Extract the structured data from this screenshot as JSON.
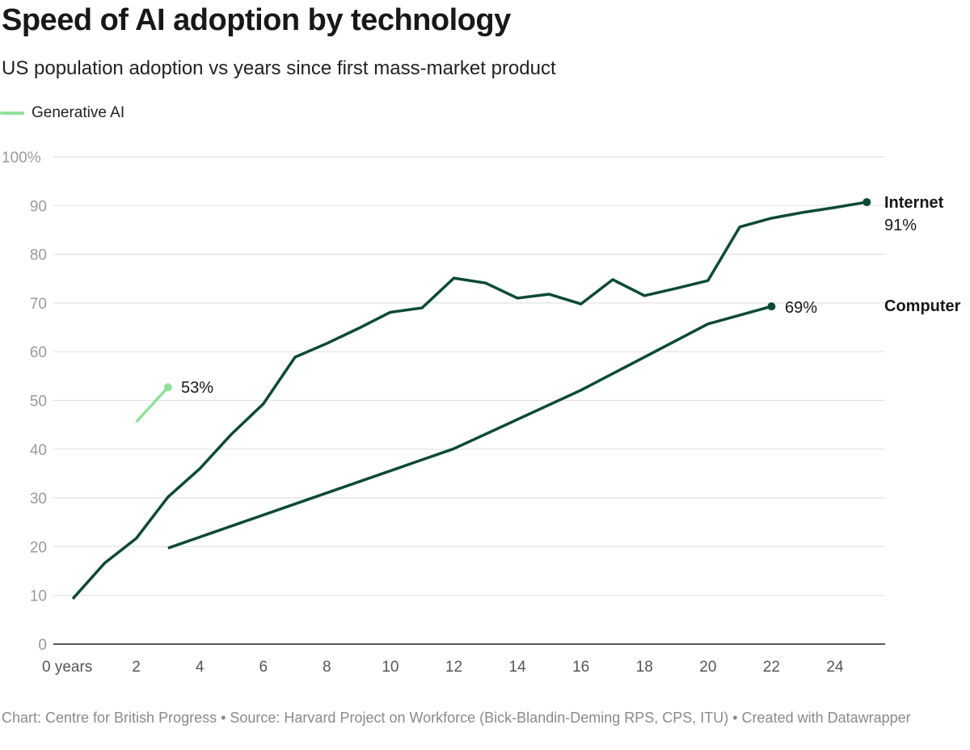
{
  "header": {
    "title": "Speed of AI adoption by technology",
    "subtitle": "US population adoption vs years since first mass-market product"
  },
  "footer": {
    "text": "Chart: Centre for British Progress • Source: Harvard Project on Workforce (Bick-Blandin-Deming RPS, CPS, ITU) • Created with Datawrapper"
  },
  "chart_data": {
    "type": "line",
    "title": "Speed of AI adoption by technology",
    "subtitle": "US population adoption vs years since first mass-market product",
    "xlim": [
      0,
      25
    ],
    "ylim": [
      0,
      100
    ],
    "x_ticks": [
      0,
      2,
      4,
      6,
      8,
      10,
      12,
      14,
      16,
      18,
      20,
      22,
      24
    ],
    "x_tick_labels": [
      "0 years",
      "2",
      "4",
      "6",
      "8",
      "10",
      "12",
      "14",
      "16",
      "18",
      "20",
      "22",
      "24"
    ],
    "y_ticks": [
      0,
      10,
      20,
      30,
      40,
      50,
      60,
      70,
      80,
      90,
      100
    ],
    "y_tick_labels": [
      "0",
      "10",
      "20",
      "30",
      "40",
      "50",
      "60",
      "70",
      "80",
      "90",
      "100%"
    ],
    "grid": "horizontal",
    "legend": {
      "position": "top-left",
      "entries": [
        "Generative AI"
      ]
    },
    "series": [
      {
        "name": "Internet",
        "color": "#0d4a33",
        "x": [
          0,
          1,
          2,
          3,
          4,
          5,
          6,
          7,
          8,
          9,
          10,
          11,
          12,
          13,
          14,
          15,
          16,
          17,
          18,
          19,
          20,
          21,
          22,
          23,
          24,
          25
        ],
        "values": [
          9.3,
          16.6,
          21.7,
          30.2,
          36,
          43.1,
          49.3,
          58.9,
          61.7,
          64.8,
          68.1,
          69,
          75.1,
          74.1,
          71,
          71.8,
          69.8,
          74.8,
          71.5,
          73,
          74.6,
          85.6,
          87.4,
          88.6,
          89.6,
          90.7
        ],
        "end_label": "Internet",
        "end_value_label": "91%"
      },
      {
        "name": "Computer",
        "color": "#0d4a33",
        "x": [
          3,
          12,
          16,
          20,
          22
        ],
        "values": [
          19.7,
          40.1,
          52.1,
          65.7,
          69.3
        ],
        "end_label": "Computer",
        "end_value_label": "69%"
      },
      {
        "name": "Generative AI",
        "color": "#8ee29a",
        "x": [
          2,
          3
        ],
        "values": [
          45.6,
          52.7
        ],
        "end_value_label": "53%"
      }
    ]
  }
}
